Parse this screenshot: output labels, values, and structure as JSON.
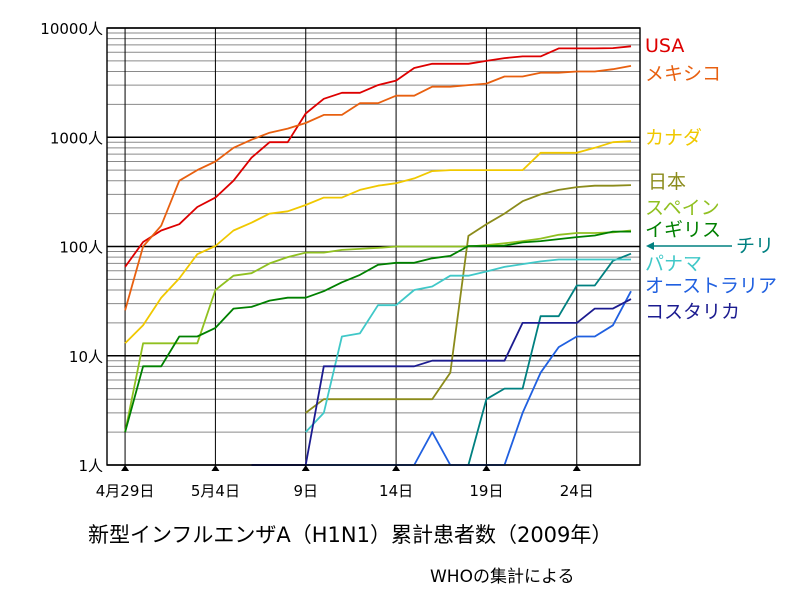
{
  "chart_data": {
    "type": "line",
    "title": "新型インフルエンザA（H1N1）累計患者数（2009年）",
    "subtitle": "WHOの集計による",
    "xlabel": "",
    "ylabel": "",
    "yscale": "log",
    "ylim": [
      1,
      10000
    ],
    "y_ticks": [
      {
        "value": 10000,
        "label": "10000人"
      },
      {
        "value": 1000,
        "label": "1000人"
      },
      {
        "value": 100,
        "label": "100人"
      },
      {
        "value": 10,
        "label": "10人"
      },
      {
        "value": 1,
        "label": "1人"
      }
    ],
    "x_ticks": [
      {
        "day": 0,
        "label": "4月29日"
      },
      {
        "day": 5,
        "label": "5月4日"
      },
      {
        "day": 10,
        "label": "9日"
      },
      {
        "day": 15,
        "label": "14日"
      },
      {
        "day": 20,
        "label": "19日"
      },
      {
        "day": 25,
        "label": "24日"
      }
    ],
    "xlim": [
      -1,
      28.5
    ],
    "grid": true,
    "legend_placement": "right",
    "series": [
      {
        "name": "USA",
        "color": "#dd0000",
        "points": [
          [
            0,
            65
          ],
          [
            1,
            110
          ],
          [
            2,
            140
          ],
          [
            3,
            160
          ],
          [
            4,
            230
          ],
          [
            5,
            280
          ],
          [
            6,
            400
          ],
          [
            7,
            650
          ],
          [
            8,
            900
          ],
          [
            9,
            900
          ],
          [
            10,
            1650
          ],
          [
            11,
            2250
          ],
          [
            12,
            2550
          ],
          [
            13,
            2550
          ],
          [
            14,
            3000
          ],
          [
            15,
            3300
          ],
          [
            16,
            4300
          ],
          [
            17,
            4700
          ],
          [
            18,
            4700
          ],
          [
            19,
            4700
          ],
          [
            20,
            5000
          ],
          [
            21,
            5300
          ],
          [
            22,
            5500
          ],
          [
            23,
            5500
          ],
          [
            24,
            6500
          ],
          [
            25,
            6500
          ],
          [
            26,
            6500
          ],
          [
            27,
            6550
          ],
          [
            28,
            6800
          ]
        ]
      },
      {
        "name": "メキシコ",
        "color": "#e86010",
        "points": [
          [
            0,
            26
          ],
          [
            1,
            100
          ],
          [
            2,
            155
          ],
          [
            3,
            400
          ],
          [
            4,
            500
          ],
          [
            5,
            600
          ],
          [
            6,
            800
          ],
          [
            7,
            950
          ],
          [
            8,
            1100
          ],
          [
            9,
            1200
          ],
          [
            10,
            1350
          ],
          [
            11,
            1600
          ],
          [
            12,
            1600
          ],
          [
            13,
            2050
          ],
          [
            14,
            2050
          ],
          [
            15,
            2400
          ],
          [
            16,
            2400
          ],
          [
            17,
            2900
          ],
          [
            18,
            2900
          ],
          [
            19,
            3000
          ],
          [
            20,
            3100
          ],
          [
            21,
            3600
          ],
          [
            22,
            3600
          ],
          [
            23,
            3900
          ],
          [
            24,
            3900
          ],
          [
            25,
            4000
          ],
          [
            26,
            4000
          ],
          [
            27,
            4200
          ],
          [
            28,
            4500
          ]
        ]
      },
      {
        "name": "カナダ",
        "color": "#f0c800",
        "points": [
          [
            0,
            13
          ],
          [
            1,
            19
          ],
          [
            2,
            34
          ],
          [
            3,
            51
          ],
          [
            4,
            85
          ],
          [
            5,
            101
          ],
          [
            6,
            140
          ],
          [
            7,
            165
          ],
          [
            8,
            200
          ],
          [
            9,
            210
          ],
          [
            10,
            240
          ],
          [
            11,
            280
          ],
          [
            12,
            280
          ],
          [
            13,
            330
          ],
          [
            14,
            360
          ],
          [
            15,
            380
          ],
          [
            16,
            420
          ],
          [
            17,
            490
          ],
          [
            18,
            500
          ],
          [
            19,
            500
          ],
          [
            20,
            500
          ],
          [
            21,
            500
          ],
          [
            22,
            500
          ],
          [
            23,
            720
          ],
          [
            24,
            720
          ],
          [
            25,
            720
          ],
          [
            26,
            800
          ],
          [
            27,
            900
          ],
          [
            28,
            920
          ]
        ]
      },
      {
        "name": "日本",
        "color": "#8b8b1b",
        "points": [
          [
            10,
            3
          ],
          [
            11,
            4
          ],
          [
            12,
            4
          ],
          [
            13,
            4
          ],
          [
            14,
            4
          ],
          [
            15,
            4
          ],
          [
            16,
            4
          ],
          [
            17,
            4
          ],
          [
            18,
            7
          ],
          [
            19,
            125
          ],
          [
            20,
            160
          ],
          [
            21,
            200
          ],
          [
            22,
            260
          ],
          [
            23,
            300
          ],
          [
            24,
            330
          ],
          [
            25,
            350
          ],
          [
            26,
            360
          ],
          [
            27,
            360
          ],
          [
            28,
            365
          ]
        ]
      },
      {
        "name": "スペイン",
        "color": "#90c020",
        "points": [
          [
            0,
            2
          ],
          [
            1,
            13
          ],
          [
            2,
            13
          ],
          [
            3,
            13
          ],
          [
            4,
            13
          ],
          [
            5,
            40
          ],
          [
            6,
            54
          ],
          [
            7,
            57
          ],
          [
            8,
            70
          ],
          [
            9,
            80
          ],
          [
            10,
            88
          ],
          [
            11,
            88
          ],
          [
            12,
            93
          ],
          [
            13,
            95
          ],
          [
            14,
            97
          ],
          [
            15,
            100
          ],
          [
            16,
            100
          ],
          [
            17,
            100
          ],
          [
            18,
            100
          ],
          [
            19,
            100
          ],
          [
            20,
            103
          ],
          [
            21,
            107
          ],
          [
            22,
            112
          ],
          [
            23,
            118
          ],
          [
            24,
            128
          ],
          [
            25,
            133
          ],
          [
            26,
            133
          ],
          [
            27,
            135
          ],
          [
            28,
            140
          ]
        ]
      },
      {
        "name": "イギリス",
        "color": "#008000",
        "points": [
          [
            0,
            2
          ],
          [
            1,
            8
          ],
          [
            2,
            8
          ],
          [
            3,
            15
          ],
          [
            4,
            15
          ],
          [
            5,
            18
          ],
          [
            6,
            27
          ],
          [
            7,
            28
          ],
          [
            8,
            32
          ],
          [
            9,
            34
          ],
          [
            10,
            34
          ],
          [
            11,
            39
          ],
          [
            12,
            47
          ],
          [
            13,
            55
          ],
          [
            14,
            68
          ],
          [
            15,
            71
          ],
          [
            16,
            71
          ],
          [
            17,
            78
          ],
          [
            18,
            82
          ],
          [
            19,
            101
          ],
          [
            20,
            101
          ],
          [
            21,
            102
          ],
          [
            22,
            109
          ],
          [
            23,
            112
          ],
          [
            24,
            117
          ],
          [
            25,
            122
          ],
          [
            26,
            126
          ],
          [
            27,
            137
          ],
          [
            28,
            137
          ]
        ]
      },
      {
        "name": "チリ",
        "color": "#008080",
        "points": [
          [
            19,
            1
          ],
          [
            20,
            4
          ],
          [
            21,
            5
          ],
          [
            22,
            5
          ],
          [
            23,
            23
          ],
          [
            24,
            23
          ],
          [
            25,
            44
          ],
          [
            26,
            44
          ],
          [
            27,
            74
          ],
          [
            28,
            86
          ]
        ]
      },
      {
        "name": "パナマ",
        "color": "#40c8c8",
        "points": [
          [
            10,
            2
          ],
          [
            11,
            3
          ],
          [
            12,
            15
          ],
          [
            13,
            16
          ],
          [
            14,
            29
          ],
          [
            15,
            29
          ],
          [
            16,
            40
          ],
          [
            17,
            43
          ],
          [
            18,
            54
          ],
          [
            19,
            54
          ],
          [
            20,
            59
          ],
          [
            21,
            65
          ],
          [
            22,
            69
          ],
          [
            23,
            73
          ],
          [
            24,
            76
          ],
          [
            25,
            76
          ],
          [
            26,
            76
          ],
          [
            27,
            76
          ],
          [
            28,
            76
          ]
        ]
      },
      {
        "name": "オーストラリア",
        "color": "#2060e0",
        "points": [
          [
            7,
            1
          ],
          [
            8,
            1
          ],
          [
            9,
            1
          ],
          [
            10,
            1
          ],
          [
            11,
            1
          ],
          [
            12,
            1
          ],
          [
            13,
            1
          ],
          [
            14,
            1
          ],
          [
            15,
            1
          ],
          [
            16,
            1
          ],
          [
            17,
            2
          ],
          [
            18,
            1
          ],
          [
            19,
            1
          ],
          [
            20,
            1
          ],
          [
            21,
            1
          ],
          [
            22,
            3
          ],
          [
            23,
            7
          ],
          [
            24,
            12
          ],
          [
            25,
            15
          ],
          [
            26,
            15
          ],
          [
            27,
            19
          ],
          [
            28,
            39
          ]
        ]
      },
      {
        "name": "コスタリカ",
        "color": "#1c1c90",
        "points": [
          [
            7,
            1
          ],
          [
            8,
            1
          ],
          [
            9,
            1
          ],
          [
            10,
            1
          ],
          [
            11,
            8
          ],
          [
            12,
            8
          ],
          [
            13,
            8
          ],
          [
            14,
            8
          ],
          [
            15,
            8
          ],
          [
            16,
            8
          ],
          [
            17,
            9
          ],
          [
            18,
            9
          ],
          [
            19,
            9
          ],
          [
            20,
            9
          ],
          [
            21,
            9
          ],
          [
            22,
            20
          ],
          [
            23,
            20
          ],
          [
            24,
            20
          ],
          [
            25,
            20
          ],
          [
            26,
            27
          ],
          [
            27,
            27
          ],
          [
            28,
            33
          ]
        ]
      }
    ]
  }
}
